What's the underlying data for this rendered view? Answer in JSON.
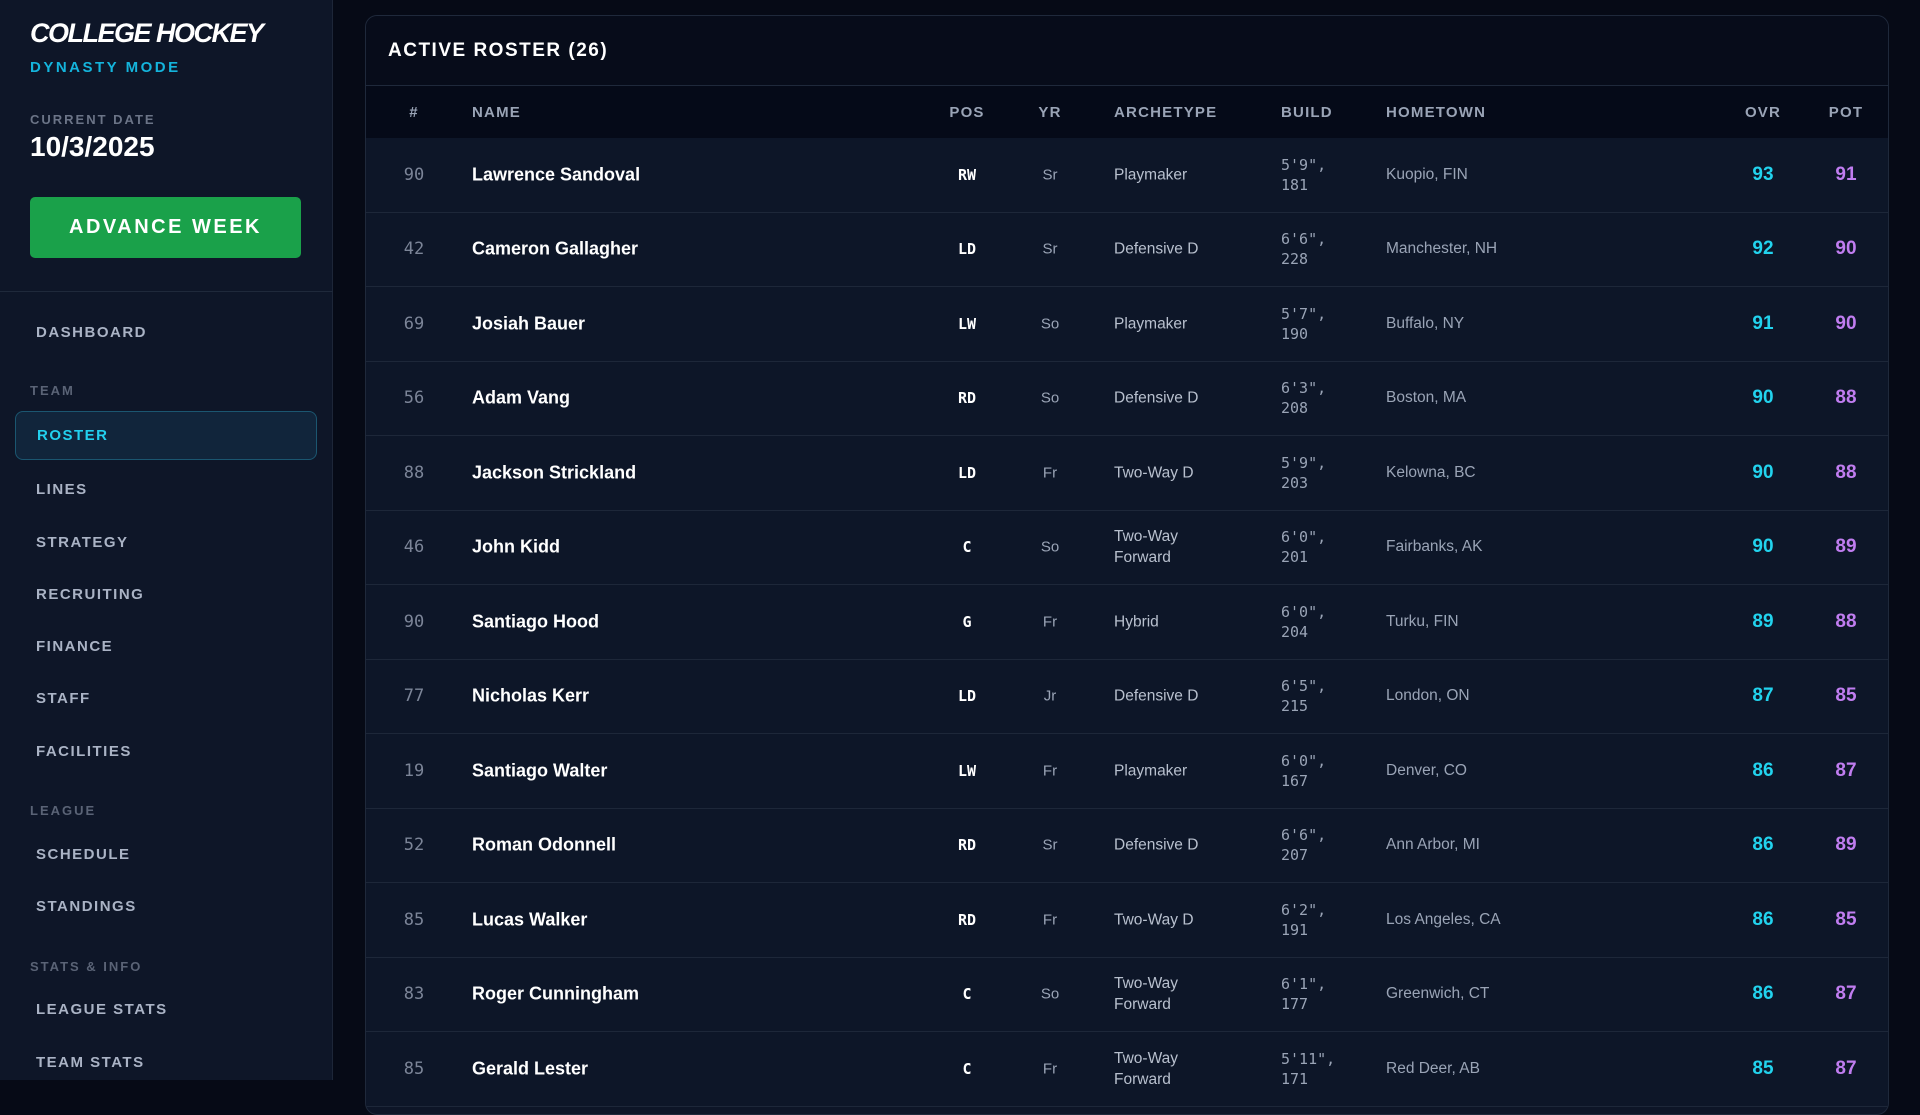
{
  "sidebar": {
    "title": "COLLEGE HOCKEY",
    "subtitle": "DYNASTY MODE",
    "date_label": "CURRENT DATE",
    "date": "10/3/2025",
    "advance_button": "ADVANCE WEEK",
    "dashboard": "DASHBOARD",
    "team_section": "TEAM",
    "roster": "ROSTER",
    "lines": "LINES",
    "strategy": "STRATEGY",
    "recruiting": "RECRUITING",
    "finance": "FINANCE",
    "staff": "STAFF",
    "facilities": "FACILITIES",
    "league_section": "LEAGUE",
    "schedule": "SCHEDULE",
    "standings": "STANDINGS",
    "stats_section": "STATS & INFO",
    "league_stats": "LEAGUE STATS",
    "team_stats": "TEAM STATS"
  },
  "roster": {
    "title": "ACTIVE ROSTER (26)",
    "columns": {
      "num": "#",
      "name": "NAME",
      "pos": "POS",
      "yr": "YR",
      "archetype": "ARCHETYPE",
      "build": "BUILD",
      "hometown": "HOMETOWN",
      "ovr": "OVR",
      "pot": "POT"
    },
    "rows": [
      {
        "num": "90",
        "name": "Lawrence Sandoval",
        "pos": "RW",
        "yr": "Sr",
        "archetype": "Playmaker",
        "height": "5'9\",",
        "weight": "181",
        "hometown": "Kuopio, FIN",
        "ovr": "93",
        "pot": "91"
      },
      {
        "num": "42",
        "name": "Cameron Gallagher",
        "pos": "LD",
        "yr": "Sr",
        "archetype": "Defensive D",
        "height": "6'6\",",
        "weight": "228",
        "hometown": "Manchester, NH",
        "ovr": "92",
        "pot": "90"
      },
      {
        "num": "69",
        "name": "Josiah Bauer",
        "pos": "LW",
        "yr": "So",
        "archetype": "Playmaker",
        "height": "5'7\",",
        "weight": "190",
        "hometown": "Buffalo, NY",
        "ovr": "91",
        "pot": "90"
      },
      {
        "num": "56",
        "name": "Adam Vang",
        "pos": "RD",
        "yr": "So",
        "archetype": "Defensive D",
        "height": "6'3\",",
        "weight": "208",
        "hometown": "Boston, MA",
        "ovr": "90",
        "pot": "88"
      },
      {
        "num": "88",
        "name": "Jackson Strickland",
        "pos": "LD",
        "yr": "Fr",
        "archetype": "Two-Way D",
        "height": "5'9\",",
        "weight": "203",
        "hometown": "Kelowna, BC",
        "ovr": "90",
        "pot": "88"
      },
      {
        "num": "46",
        "name": "John Kidd",
        "pos": "C",
        "yr": "So",
        "archetype": "Two-Way Forward",
        "height": "6'0\",",
        "weight": "201",
        "hometown": "Fairbanks, AK",
        "ovr": "90",
        "pot": "89"
      },
      {
        "num": "90",
        "name": "Santiago Hood",
        "pos": "G",
        "yr": "Fr",
        "archetype": "Hybrid",
        "height": "6'0\",",
        "weight": "204",
        "hometown": "Turku, FIN",
        "ovr": "89",
        "pot": "88"
      },
      {
        "num": "77",
        "name": "Nicholas Kerr",
        "pos": "LD",
        "yr": "Jr",
        "archetype": "Defensive D",
        "height": "6'5\",",
        "weight": "215",
        "hometown": "London, ON",
        "ovr": "87",
        "pot": "85"
      },
      {
        "num": "19",
        "name": "Santiago Walter",
        "pos": "LW",
        "yr": "Fr",
        "archetype": "Playmaker",
        "height": "6'0\",",
        "weight": "167",
        "hometown": "Denver, CO",
        "ovr": "86",
        "pot": "87"
      },
      {
        "num": "52",
        "name": "Roman Odonnell",
        "pos": "RD",
        "yr": "Sr",
        "archetype": "Defensive D",
        "height": "6'6\",",
        "weight": "207",
        "hometown": "Ann Arbor, MI",
        "ovr": "86",
        "pot": "89"
      },
      {
        "num": "85",
        "name": "Lucas Walker",
        "pos": "RD",
        "yr": "Fr",
        "archetype": "Two-Way D",
        "height": "6'2\",",
        "weight": "191",
        "hometown": "Los Angeles, CA",
        "ovr": "86",
        "pot": "85"
      },
      {
        "num": "83",
        "name": "Roger Cunningham",
        "pos": "C",
        "yr": "So",
        "archetype": "Two-Way Forward",
        "height": "6'1\",",
        "weight": "177",
        "hometown": "Greenwich, CT",
        "ovr": "86",
        "pot": "87"
      },
      {
        "num": "85",
        "name": "Gerald Lester",
        "pos": "C",
        "yr": "Fr",
        "archetype": "Two-Way Forward",
        "height": "5'11\",",
        "weight": "171",
        "hometown": "Red Deer, AB",
        "ovr": "85",
        "pot": "87"
      }
    ]
  },
  "colors": {
    "accent": "#22d3ee",
    "ovr": "#22d3ee",
    "pot": "#c07df0",
    "advance": "#1aa14a"
  }
}
